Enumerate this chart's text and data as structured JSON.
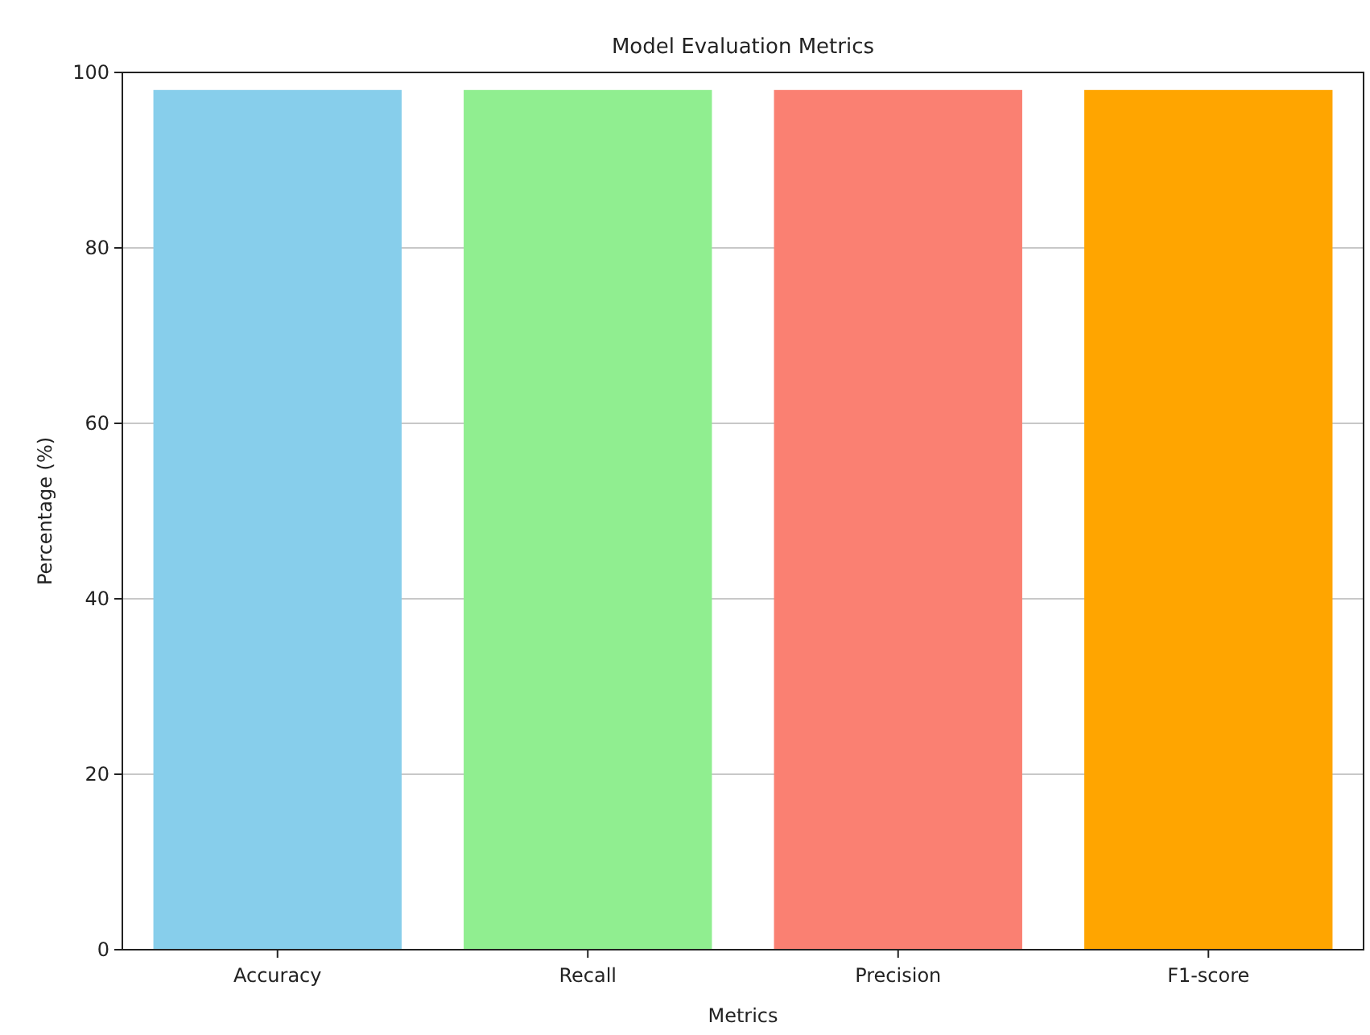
{
  "chart_data": {
    "type": "bar",
    "title": "Model Evaluation Metrics",
    "xlabel": "Metrics",
    "ylabel": "Percentage (%)",
    "categories": [
      "Accuracy",
      "Recall",
      "Precision",
      "F1-score"
    ],
    "values": [
      98,
      98,
      98,
      98
    ],
    "colors": [
      "#87ceeb",
      "#90ee90",
      "#fa8072",
      "#ffa500"
    ],
    "ylim": [
      0,
      100
    ],
    "yticks": [
      0,
      20,
      40,
      60,
      80,
      100
    ],
    "grid": "y"
  }
}
